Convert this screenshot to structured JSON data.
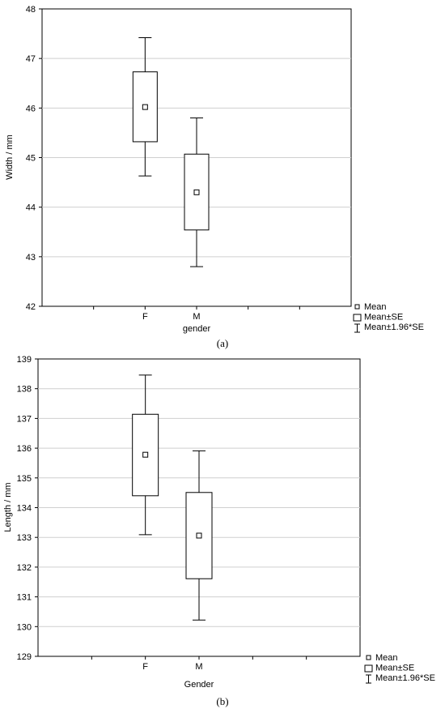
{
  "chart_data": [
    {
      "type": "box",
      "panel_label": "(a)",
      "xlabel": "gender",
      "ylabel": "Width / mm",
      "categories": [
        "F",
        "M"
      ],
      "ylim": [
        42,
        48
      ],
      "yticks": [
        42,
        43,
        44,
        45,
        46,
        47,
        48
      ],
      "grid": true,
      "series": [
        {
          "category": "F",
          "mean": 46.02,
          "se_low": 45.32,
          "se_high": 46.73,
          "ci_low": 44.63,
          "ci_high": 47.42
        },
        {
          "category": "M",
          "mean": 44.3,
          "se_low": 43.54,
          "se_high": 45.07,
          "ci_low": 42.8,
          "ci_high": 45.8
        }
      ],
      "legend": [
        "Mean",
        "Mean±SE",
        "Mean±1.96*SE"
      ],
      "legend_position": "bottom-right outside"
    },
    {
      "type": "box",
      "panel_label": "(b)",
      "xlabel": "Gender",
      "ylabel": "Length / mm",
      "categories": [
        "F",
        "M"
      ],
      "ylim": [
        129,
        139
      ],
      "yticks": [
        129,
        130,
        131,
        132,
        133,
        134,
        135,
        136,
        137,
        138,
        139
      ],
      "grid": true,
      "series": [
        {
          "category": "F",
          "mean": 135.78,
          "se_low": 134.4,
          "se_high": 137.14,
          "ci_low": 133.09,
          "ci_high": 138.46
        },
        {
          "category": "M",
          "mean": 133.06,
          "se_low": 131.61,
          "se_high": 134.51,
          "ci_low": 130.22,
          "ci_high": 135.91
        }
      ],
      "legend": [
        "Mean",
        "Mean±SE",
        "Mean±1.96*SE"
      ],
      "legend_position": "bottom-right outside"
    }
  ]
}
